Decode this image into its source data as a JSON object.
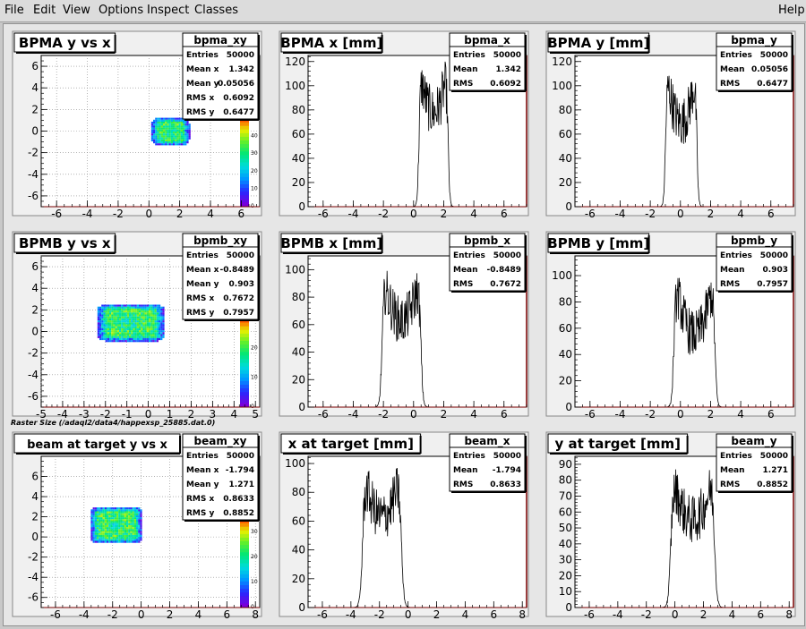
{
  "menu": {
    "file": "File",
    "edit": "Edit",
    "view": "View",
    "options": "Options",
    "inspect": "Inspect",
    "classes": "Classes",
    "help": "Help"
  },
  "raster_label": "Raster Size (/adaql2/data4/happexsp_25885.dat.0)",
  "chart_data": [
    {
      "type": "heatmap",
      "title": "BPMA y vs x",
      "xlim": [
        -7,
        7.2
      ],
      "ylim": [
        -7,
        7
      ],
      "xticks": [
        -6,
        -4,
        -2,
        0,
        2,
        4,
        6
      ],
      "yticks": [
        -6,
        -4,
        -2,
        0,
        2,
        4,
        6
      ],
      "colorbar": {
        "min": 0,
        "max": 50,
        "ticks": [
          0,
          10,
          20,
          30,
          40,
          50
        ]
      },
      "blob": {
        "cx": 1.34,
        "cy": 0.05,
        "wx": 1.9,
        "wy": 2.1
      },
      "stats": {
        "name": "bpma_xy",
        "rows": [
          [
            "Entries",
            "50000"
          ],
          [
            "Mean x",
            "1.342"
          ],
          [
            "Mean y",
            "0.05056"
          ],
          [
            "RMS x",
            "0.6092"
          ],
          [
            "RMS y",
            "0.6477"
          ]
        ]
      }
    },
    {
      "type": "line",
      "title": "BPMA x [mm]",
      "xlim": [
        -7,
        7.5
      ],
      "ylim": [
        0,
        125
      ],
      "xticks": [
        -6,
        -4,
        -2,
        0,
        2,
        4,
        6
      ],
      "yticks": [
        0,
        20,
        40,
        60,
        80,
        100,
        120
      ],
      "shape": {
        "left": 0.35,
        "right": 2.3,
        "peak": 118,
        "dip": 78,
        "edge": 0.22
      },
      "stats": {
        "name": "bpma_x",
        "rows": [
          [
            "Entries",
            "50000"
          ],
          [
            "Mean",
            "1.342"
          ],
          [
            "RMS",
            "0.6092"
          ]
        ]
      }
    },
    {
      "type": "line",
      "title": "BPMA y [mm]",
      "xlim": [
        -7,
        7.5
      ],
      "ylim": [
        0,
        125
      ],
      "xticks": [
        -6,
        -4,
        -2,
        0,
        2,
        4,
        6
      ],
      "yticks": [
        0,
        20,
        40,
        60,
        80,
        100,
        120
      ],
      "shape": {
        "left": -1.0,
        "right": 1.1,
        "peak": 118,
        "dip": 70,
        "edge": 0.22
      },
      "stats": {
        "name": "bpma_y",
        "rows": [
          [
            "Entries",
            "50000"
          ],
          [
            "Mean",
            "0.05056"
          ],
          [
            "RMS",
            "0.6477"
          ]
        ]
      }
    },
    {
      "type": "heatmap",
      "title": "BPMB y vs x",
      "xlim": [
        -5,
        5.2
      ],
      "ylim": [
        -7,
        7
      ],
      "xticks": [
        -5,
        -4,
        -3,
        -2,
        -1,
        0,
        1,
        2,
        3,
        4,
        5
      ],
      "yticks": [
        -6,
        -4,
        -2,
        0,
        2,
        4,
        6
      ],
      "colorbar": {
        "min": 0,
        "max": 30,
        "ticks": [
          0,
          10,
          20
        ]
      },
      "blob": {
        "cx": -0.85,
        "cy": 0.9,
        "wx": 2.6,
        "wy": 2.9
      },
      "stats": {
        "name": "bpmb_xy",
        "rows": [
          [
            "Entries",
            "50000"
          ],
          [
            "Mean x",
            "-0.8489"
          ],
          [
            "Mean y",
            "0.903"
          ],
          [
            "RMS x",
            "0.7672"
          ],
          [
            "RMS y",
            "0.7957"
          ]
        ]
      }
    },
    {
      "type": "line",
      "title": "BPMB x [mm]",
      "xlim": [
        -7,
        7.5
      ],
      "ylim": [
        0,
        110
      ],
      "xticks": [
        -6,
        -4,
        -2,
        0,
        2,
        4,
        6
      ],
      "yticks": [
        0,
        20,
        40,
        60,
        80,
        100
      ],
      "shape": {
        "left": -2.1,
        "right": 0.5,
        "peak": 100,
        "dip": 63,
        "edge": 0.28
      },
      "stats": {
        "name": "bpmb_x",
        "rows": [
          [
            "Entries",
            "50000"
          ],
          [
            "Mean",
            "-0.8489"
          ],
          [
            "RMS",
            "0.7672"
          ]
        ]
      }
    },
    {
      "type": "line",
      "title": "BPMB y [mm]",
      "xlim": [
        -7,
        7.5
      ],
      "ylim": [
        0,
        115
      ],
      "xticks": [
        -6,
        -4,
        -2,
        0,
        2,
        4,
        6
      ],
      "yticks": [
        0,
        20,
        40,
        60,
        80,
        100
      ],
      "shape": {
        "left": -0.45,
        "right": 2.3,
        "peak": 105,
        "dip": 55,
        "edge": 0.28
      },
      "stats": {
        "name": "bpmb_y",
        "rows": [
          [
            "Entries",
            "50000"
          ],
          [
            "Mean",
            "0.903"
          ],
          [
            "RMS",
            "0.7957"
          ]
        ]
      }
    },
    {
      "type": "heatmap",
      "title": "beam at target y vs x",
      "xlim": [
        -7,
        8.3
      ],
      "ylim": [
        -7,
        8
      ],
      "xticks": [
        -6,
        -4,
        -2,
        0,
        2,
        4,
        6,
        8
      ],
      "yticks": [
        -6,
        -4,
        -2,
        0,
        2,
        4,
        6
      ],
      "colorbar": {
        "min": 0,
        "max": 35,
        "ticks": [
          0,
          10,
          20,
          30
        ]
      },
      "blob": {
        "cx": -1.8,
        "cy": 1.27,
        "wx": 3.0,
        "wy": 3.1
      },
      "stats": {
        "name": "beam_xy",
        "rows": [
          [
            "Entries",
            "50000"
          ],
          [
            "Mean x",
            "-1.794"
          ],
          [
            "Mean y",
            "1.271"
          ],
          [
            "RMS x",
            "0.8633"
          ],
          [
            "RMS y",
            "0.8852"
          ]
        ]
      }
    },
    {
      "type": "line",
      "title": "x at target [mm]",
      "xlim": [
        -7,
        8.3
      ],
      "ylim": [
        0,
        105
      ],
      "xticks": [
        -6,
        -4,
        -2,
        0,
        2,
        4,
        6,
        8
      ],
      "yticks": [
        0,
        20,
        40,
        60,
        80,
        100
      ],
      "shape": {
        "left": -3.2,
        "right": -0.45,
        "peak": 98,
        "dip": 63,
        "edge": 0.35
      },
      "stats": {
        "name": "beam_x",
        "rows": [
          [
            "Entries",
            "50000"
          ],
          [
            "Mean",
            "-1.794"
          ],
          [
            "RMS",
            "0.8633"
          ]
        ]
      }
    },
    {
      "type": "line",
      "title": "y at target [mm]",
      "xlim": [
        -7,
        8.3
      ],
      "ylim": [
        0,
        95
      ],
      "xticks": [
        -6,
        -4,
        -2,
        0,
        2,
        4,
        6,
        8
      ],
      "yticks": [
        0,
        10,
        20,
        30,
        40,
        50,
        60,
        70,
        80,
        90
      ],
      "shape": {
        "left": -0.3,
        "right": 2.8,
        "peak": 88,
        "dip": 55,
        "edge": 0.35
      },
      "stats": {
        "name": "beam_y",
        "rows": [
          [
            "Entries",
            "50000"
          ],
          [
            "Mean",
            "1.271"
          ],
          [
            "RMS",
            "0.8852"
          ]
        ]
      }
    }
  ]
}
